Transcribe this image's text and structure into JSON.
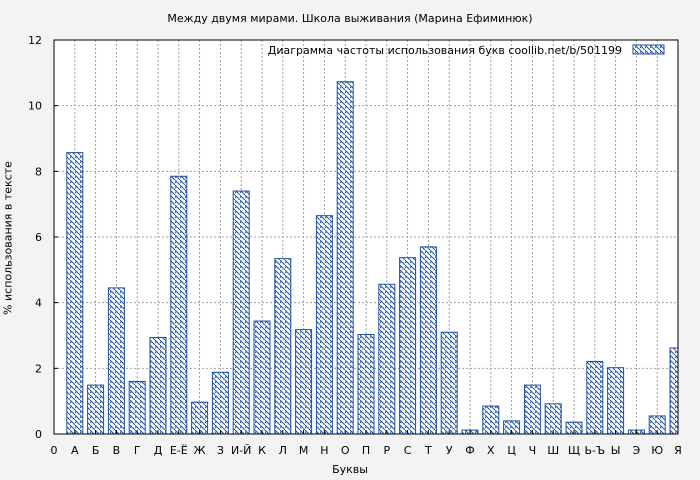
{
  "chart_data": {
    "type": "bar",
    "title": "Между двумя мирами. Школа выживания (Марина Ефиминюк)",
    "xlabel": "Буквы",
    "ylabel": "% использования в тексте",
    "legend": "Диаграмма частоты использования букв  coollib.net/b/501199",
    "legend_position": "top-right",
    "ylim": [
      0,
      12
    ],
    "yticks": [
      0,
      2,
      4,
      6,
      8,
      10,
      12
    ],
    "grid": true,
    "categories": [
      "0",
      "А",
      "Б",
      "В",
      "Г",
      "Д",
      "Е-Ё",
      "Ж",
      "З",
      "И-Й",
      "К",
      "Л",
      "М",
      "Н",
      "О",
      "П",
      "Р",
      "С",
      "Т",
      "У",
      "Ф",
      "Х",
      "Ц",
      "Ч",
      "Ш",
      "Щ",
      "Ь-Ъ",
      "Ы",
      "Э",
      "Ю",
      "Я"
    ],
    "values": [
      null,
      8.57,
      1.49,
      4.45,
      1.6,
      2.94,
      7.85,
      0.97,
      1.88,
      7.4,
      3.44,
      5.34,
      3.18,
      6.65,
      10.73,
      3.03,
      4.56,
      5.37,
      5.7,
      3.1,
      0.12,
      0.85,
      0.4,
      1.49,
      0.92,
      0.36,
      2.21,
      2.02,
      0.12,
      0.55,
      2.62
    ],
    "colors": {
      "bar": "#1f4fa0",
      "background": "#f3f3f3",
      "plot_background": "#ffffff",
      "grid": "#a0a0a0"
    }
  }
}
